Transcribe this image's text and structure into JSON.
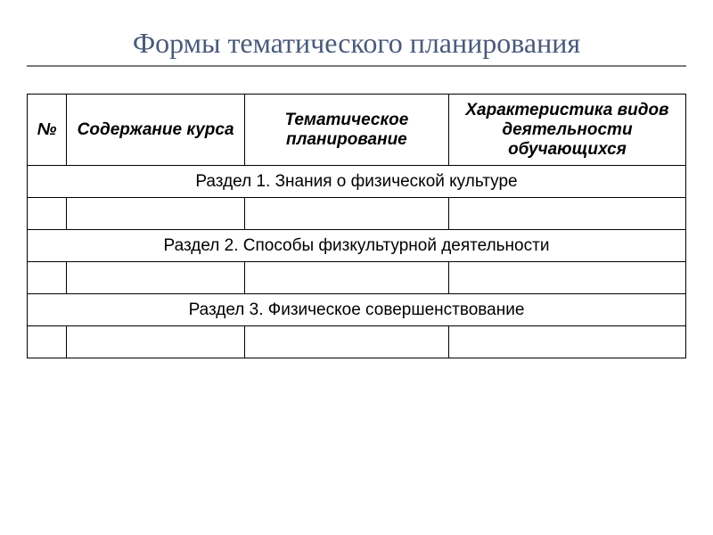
{
  "title": "Формы тематического планирования",
  "table": {
    "headers": {
      "num": "№",
      "content": "Содержание курса",
      "plan": "Тематическое планирование",
      "char": "Характеристика видов деятельности обучающихся"
    },
    "sections": {
      "s1": "Раздел 1. Знания о физической культуре",
      "s2": "Раздел 2. Способы физкультурной деятельности",
      "s3": "Раздел 3. Физическое совершенствование"
    }
  },
  "colors": {
    "title_color": "#4a5a7a",
    "divider_color": "#7a7a7a",
    "border_color": "#000000",
    "text_color": "#000000",
    "background": "#ffffff"
  },
  "typography": {
    "title_fontsize": 32,
    "header_fontsize": 19,
    "cell_fontsize": 19,
    "title_family": "Times New Roman",
    "body_family": "Arial"
  },
  "column_widths": {
    "num": "6%",
    "content": "27%",
    "plan": "31%",
    "char": "36%"
  }
}
